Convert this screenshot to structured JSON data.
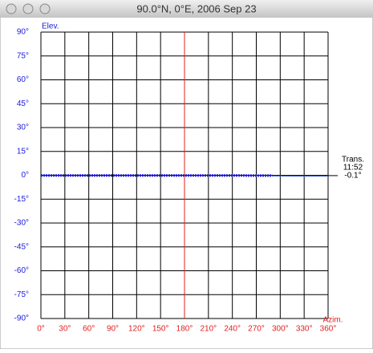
{
  "window": {
    "title": "90.0°N, 0°E, 2006 Sep 23"
  },
  "chart_data": {
    "type": "line",
    "y_label": "Elev.",
    "x_label": "Azim.",
    "annotation": [
      "Trans.",
      "11:52",
      "-0.1°"
    ],
    "marker_x": 180,
    "marker_color": "#e02020",
    "grid": true,
    "xlim": [
      0,
      360
    ],
    "xticks": [
      {
        "value": 0,
        "label": "0°"
      },
      {
        "value": 30,
        "label": "30°"
      },
      {
        "value": 60,
        "label": "60°"
      },
      {
        "value": 90,
        "label": "90°"
      },
      {
        "value": 120,
        "label": "120°"
      },
      {
        "value": 150,
        "label": "150°"
      },
      {
        "value": 180,
        "label": "180°"
      },
      {
        "value": 210,
        "label": "210°"
      },
      {
        "value": 240,
        "label": "240°"
      },
      {
        "value": 270,
        "label": "270°"
      },
      {
        "value": 300,
        "label": "300°"
      },
      {
        "value": 330,
        "label": "330°"
      },
      {
        "value": 360,
        "label": "360°"
      }
    ],
    "ylim": [
      -90,
      90
    ],
    "yticks": [
      {
        "value": -90,
        "label": "-90°"
      },
      {
        "value": -75,
        "label": "-75°"
      },
      {
        "value": -60,
        "label": "-60°"
      },
      {
        "value": -45,
        "label": "-45°"
      },
      {
        "value": -30,
        "label": "-30°"
      },
      {
        "value": -15,
        "label": "-15°"
      },
      {
        "value": 0,
        "label": "0°"
      },
      {
        "value": 15,
        "label": "15°"
      },
      {
        "value": 30,
        "label": "30°"
      },
      {
        "value": 45,
        "label": "45°"
      },
      {
        "value": 60,
        "label": "60°"
      },
      {
        "value": 75,
        "label": "75°"
      },
      {
        "value": 90,
        "label": "90°"
      }
    ],
    "series": [
      {
        "color": "#1a1adc",
        "x": [
          0,
          30,
          60,
          90,
          120,
          150,
          180,
          210,
          240,
          270,
          290
        ],
        "values": [
          -0.1,
          -0.1,
          -0.1,
          -0.1,
          -0.1,
          -0.1,
          -0.1,
          -0.1,
          -0.1,
          -0.2,
          -0.2
        ]
      },
      {
        "color": "#4a6ac8",
        "x": [
          290,
          320,
          360
        ],
        "values": [
          -0.4,
          -0.5,
          -0.5
        ]
      }
    ]
  }
}
